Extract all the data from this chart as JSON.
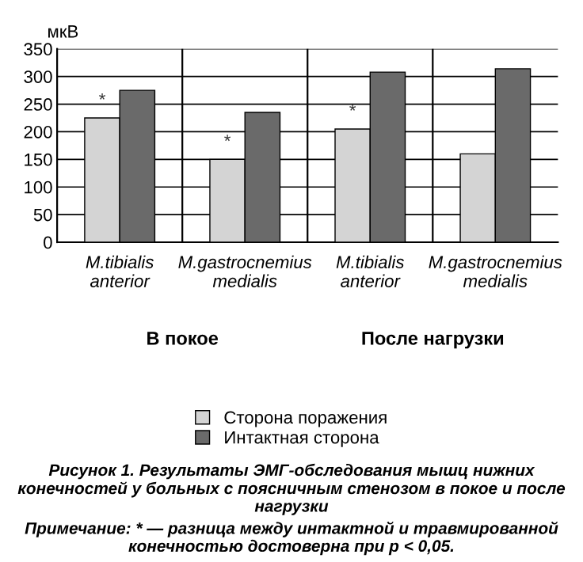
{
  "chart_data": {
    "type": "bar",
    "ylabel": "мкВ",
    "categories": [
      "M.tibialis anterior",
      "M.gastrocnemius medialis",
      "M.tibialis anterior",
      "M.gastrocnemius medialis"
    ],
    "series": [
      {
        "name": "Сторона поражения",
        "color": "#d4d4d4",
        "values": [
          225,
          150,
          205,
          160
        ],
        "value_labels": [
          "*",
          "*",
          "*",
          null
        ]
      },
      {
        "name": "Интактная сторона",
        "color": "#6a6a6a",
        "values": [
          275,
          235,
          308,
          314
        ]
      }
    ],
    "ylim": [
      0,
      350
    ],
    "yticks": [
      0,
      50,
      100,
      150,
      200,
      250,
      300,
      350
    ],
    "grid": true,
    "legend": "bottom",
    "annotations": [
      "В покое",
      "После нагрузки",
      "Рисунок 1. Результаты ЭМГ-обследования мышц нижних конечностей у больных с поясничным стенозом в покое и после нагрузки",
      "Примечание: * — разница между интактной и травмированной конечностью достоверна при p < 0,05."
    ]
  }
}
